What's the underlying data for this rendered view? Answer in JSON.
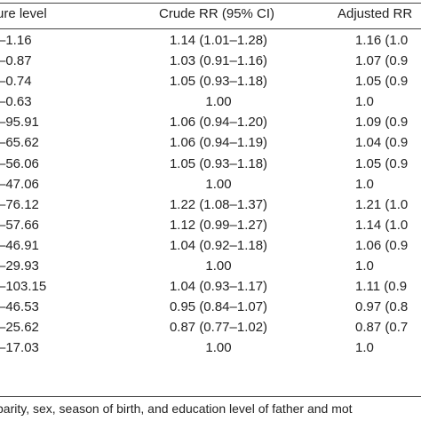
{
  "header": {
    "col1": "ure level",
    "col2": "Crude RR (95% CI)",
    "col3": "Adjusted RR"
  },
  "rows": [
    {
      "level": "–1.16",
      "crude": "1.14 (1.01–1.28)",
      "adjusted": "1.16 (1.0"
    },
    {
      "level": "–0.87",
      "crude": "1.03 (0.91–1.16)",
      "adjusted": "1.07 (0.9"
    },
    {
      "level": "–0.74",
      "crude": "1.05 (0.93–1.18)",
      "adjusted": "1.05 (0.9"
    },
    {
      "level": "–0.63",
      "crude": "1.00",
      "adjusted": "1.0"
    },
    {
      "level": "–95.91",
      "crude": "1.06 (0.94–1.20)",
      "adjusted": "1.09 (0.9"
    },
    {
      "level": "–65.62",
      "crude": "1.06 (0.94–1.19)",
      "adjusted": "1.04 (0.9"
    },
    {
      "level": "–56.06",
      "crude": "1.05 (0.93–1.18)",
      "adjusted": "1.05 (0.9"
    },
    {
      "level": "–47.06",
      "crude": "1.00",
      "adjusted": "1.0"
    },
    {
      "level": "–76.12",
      "crude": "1.22 (1.08–1.37)",
      "adjusted": "1.21 (1.0"
    },
    {
      "level": "–57.66",
      "crude": "1.12 (0.99–1.27)",
      "adjusted": "1.14 (1.0"
    },
    {
      "level": "–46.91",
      "crude": "1.04 (0.92–1.18)",
      "adjusted": "1.06 (0.9"
    },
    {
      "level": "–29.93",
      "crude": "1.00",
      "adjusted": "1.0"
    },
    {
      "level": "–103.15",
      "crude": "1.04 (0.93–1.17)",
      "adjusted": "1.11 (0.9"
    },
    {
      "level": "–46.53",
      "crude": "0.95 (0.84–1.07)",
      "adjusted": "0.97 (0.8"
    },
    {
      "level": "–25.62",
      "crude": "0.87 (0.77–1.02)",
      "adjusted": "0.87 (0.7"
    },
    {
      "level": "–17.03",
      "crude": "1.00",
      "adjusted": "1.0"
    }
  ],
  "footnote": "parity, sex, season of birth, and education level of father and mot"
}
